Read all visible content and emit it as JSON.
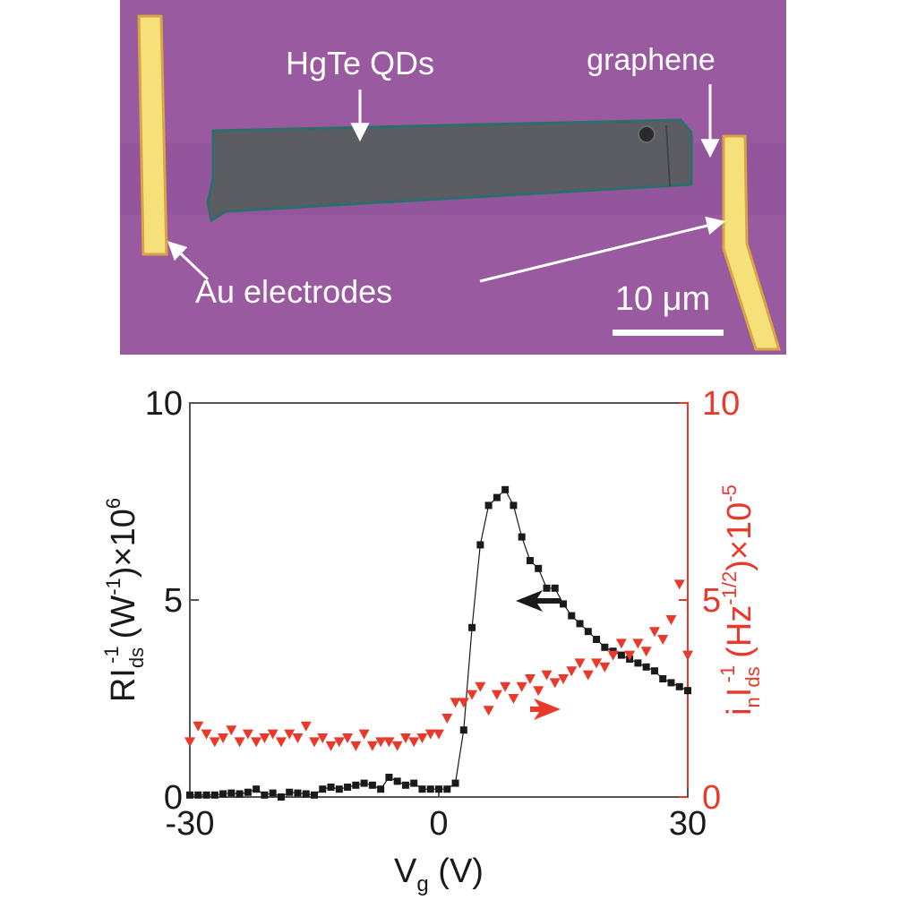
{
  "micrograph": {
    "labels": {
      "hgte": "HgTe QDs",
      "graphene": "graphene",
      "electrodes": "Au electrodes",
      "scale": "10 μm"
    },
    "colors": {
      "substrate": "#9a5aa0",
      "electrode": "#f5e07a",
      "qd_film": "#5c5d62",
      "label": "#ffffff"
    }
  },
  "chart_data": {
    "type": "scatter",
    "xlabel": {
      "main": "V",
      "sub": "g",
      "unit": " (V)"
    },
    "xlim": [
      -30,
      30
    ],
    "xticks": [
      "-30",
      "0",
      "30"
    ],
    "left_axis": {
      "label_parts": {
        "r": "RI",
        "sub": "ds",
        "sup1": "-1",
        "mid": "(W",
        "sup2": "-1",
        "tail": ")×10",
        "sup3": "6"
      },
      "ylim": [
        0,
        10
      ],
      "ticks": [
        "0",
        "5",
        "10"
      ],
      "color": "#1a1a1a"
    },
    "right_axis": {
      "label_parts": {
        "i": "i",
        "sub1": "n",
        "I": "I",
        "sub2": "ds",
        "sup1": "-1",
        "mid": "(Hz",
        "sup2": "-1/2",
        "tail": ")×10",
        "sup3": "-5"
      },
      "ylim": [
        0,
        10
      ],
      "ticks": [
        "0",
        "5",
        "10"
      ],
      "color": "#e8392b"
    },
    "series": [
      {
        "axis": "left",
        "marker": "square",
        "color": "#1a1a1a",
        "line": true,
        "x": [
          -30,
          -29,
          -28,
          -27,
          -26,
          -25,
          -24,
          -23,
          -22,
          -21,
          -20,
          -19,
          -18,
          -17,
          -16,
          -15,
          -14,
          -13,
          -12,
          -11,
          -10,
          -9,
          -8,
          -7,
          -6,
          -5,
          -4,
          -3,
          -2,
          -1,
          0,
          1,
          2,
          3,
          4,
          5,
          6,
          7,
          8,
          9,
          10,
          11,
          12,
          13,
          14,
          15,
          16,
          17,
          18,
          19,
          20,
          21,
          22,
          23,
          24,
          25,
          26,
          27,
          28,
          29,
          30
        ],
        "y": [
          0.05,
          0.05,
          0.05,
          0.05,
          0.08,
          0.1,
          0.08,
          0.12,
          0.2,
          0.05,
          0.1,
          0.0,
          0.12,
          0.1,
          0.08,
          0.05,
          0.2,
          0.25,
          0.2,
          0.25,
          0.3,
          0.35,
          0.3,
          0.2,
          0.5,
          0.4,
          0.3,
          0.35,
          0.2,
          0.2,
          0.2,
          0.2,
          0.35,
          1.7,
          4.3,
          6.4,
          7.4,
          7.6,
          7.8,
          7.4,
          6.6,
          6.0,
          5.8,
          5.3,
          5.3,
          4.9,
          4.6,
          4.4,
          4.2,
          4.0,
          3.8,
          3.7,
          3.6,
          3.5,
          3.4,
          3.3,
          3.2,
          3.0,
          2.9,
          2.8,
          2.7
        ]
      },
      {
        "axis": "right",
        "marker": "triangle-down",
        "color": "#e8392b",
        "line": false,
        "x": [
          -30,
          -29,
          -28,
          -27,
          -26,
          -25,
          -24,
          -23,
          -22,
          -21,
          -20,
          -19,
          -18,
          -17,
          -16,
          -15,
          -14,
          -13,
          -12,
          -11,
          -10,
          -9,
          -8,
          -7,
          -6,
          -5,
          -4,
          -3,
          -2,
          -1,
          0,
          1,
          2,
          3,
          4,
          5,
          6,
          7,
          8,
          9,
          10,
          11,
          12,
          13,
          14,
          15,
          16,
          17,
          18,
          19,
          20,
          21,
          22,
          23,
          24,
          25,
          26,
          27,
          28,
          29,
          30
        ],
        "y": [
          1.4,
          1.8,
          1.6,
          1.4,
          1.5,
          1.7,
          1.4,
          1.6,
          1.4,
          1.5,
          1.6,
          1.4,
          1.6,
          1.5,
          1.8,
          1.4,
          1.5,
          1.3,
          1.4,
          1.5,
          1.3,
          1.6,
          1.3,
          1.4,
          1.4,
          1.3,
          1.5,
          1.4,
          1.5,
          1.6,
          1.6,
          2.0,
          2.4,
          2.4,
          2.6,
          2.8,
          2.2,
          2.6,
          2.8,
          2.5,
          2.8,
          3.0,
          2.7,
          3.1,
          2.9,
          3.0,
          3.2,
          3.4,
          3.1,
          3.4,
          3.3,
          3.6,
          3.9,
          3.6,
          3.9,
          3.7,
          4.2,
          4.0,
          4.5,
          5.4,
          3.6
        ]
      }
    ],
    "annotations": [
      "left-arrow-black",
      "right-arrow-red"
    ]
  }
}
